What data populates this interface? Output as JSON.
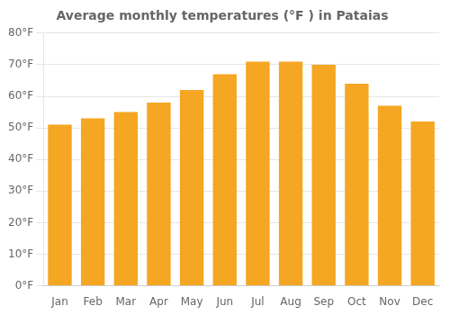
{
  "chart_data": {
    "type": "bar",
    "title": "Average monthly temperatures (°F ) in Pataias",
    "categories": [
      "Jan",
      "Feb",
      "Mar",
      "Apr",
      "May",
      "Jun",
      "Jul",
      "Aug",
      "Sep",
      "Oct",
      "Nov",
      "Dec"
    ],
    "values": [
      51,
      53,
      55,
      58,
      62,
      67,
      71,
      71,
      70,
      64,
      57,
      52
    ],
    "color": "#F5A623",
    "ylim": [
      0,
      80
    ],
    "yticks": [
      {
        "value": 0,
        "label": "0°F"
      },
      {
        "value": 10,
        "label": "10°F"
      },
      {
        "value": 20,
        "label": "20°F"
      },
      {
        "value": 30,
        "label": "30°F"
      },
      {
        "value": 40,
        "label": "40°F"
      },
      {
        "value": 50,
        "label": "50°F"
      },
      {
        "value": 60,
        "label": "60°F"
      },
      {
        "value": 70,
        "label": "70°F"
      },
      {
        "value": 80,
        "label": "80°F"
      }
    ],
    "grid": true
  }
}
